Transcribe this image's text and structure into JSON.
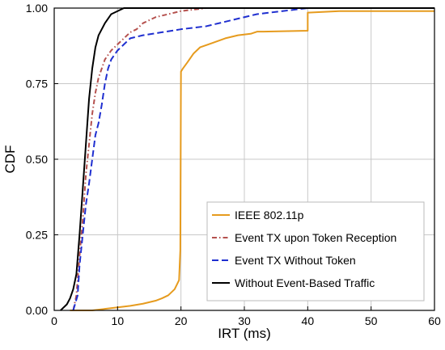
{
  "chart_data": {
    "type": "line",
    "title": "",
    "xlabel": "IRT (ms)",
    "ylabel": "CDF",
    "xlim": [
      0,
      60
    ],
    "ylim": [
      0,
      1
    ],
    "x_ticks": [
      0,
      10,
      20,
      30,
      40,
      50,
      60
    ],
    "x_tick_labels": [
      "0",
      "10",
      "20",
      "30",
      "40",
      "50",
      "60"
    ],
    "y_ticks": [
      0,
      0.25,
      0.5,
      0.75,
      1.0
    ],
    "y_tick_labels": [
      "0.00",
      "0.25",
      "0.50",
      "0.75",
      "1.00"
    ],
    "grid": true,
    "legend_position": "bottom-right",
    "series": [
      {
        "name": "IEEE 802.11p",
        "color": "#E69B1E",
        "dash": "solid",
        "points": [
          [
            2.5,
            0
          ],
          [
            6,
            0
          ],
          [
            8,
            0.005
          ],
          [
            10,
            0.01
          ],
          [
            12,
            0.015
          ],
          [
            14,
            0.022
          ],
          [
            16,
            0.032
          ],
          [
            17,
            0.04
          ],
          [
            18,
            0.05
          ],
          [
            19,
            0.07
          ],
          [
            19.7,
            0.1
          ],
          [
            19.9,
            0.2
          ],
          [
            20,
            0.79
          ],
          [
            20.3,
            0.8
          ],
          [
            21,
            0.82
          ],
          [
            22,
            0.85
          ],
          [
            23,
            0.87
          ],
          [
            25,
            0.885
          ],
          [
            27,
            0.9
          ],
          [
            29,
            0.91
          ],
          [
            31,
            0.915
          ],
          [
            32,
            0.922
          ],
          [
            33,
            0.922
          ],
          [
            40,
            0.925
          ],
          [
            40,
            0.985
          ],
          [
            45,
            0.99
          ],
          [
            60,
            0.99
          ]
        ]
      },
      {
        "name": "Event TX upon Token Reception",
        "color": "#B5514E",
        "dash": "dashdot",
        "points": [
          [
            3,
            0
          ],
          [
            3.5,
            0.05
          ],
          [
            4,
            0.18
          ],
          [
            4.5,
            0.3
          ],
          [
            5,
            0.45
          ],
          [
            5.5,
            0.55
          ],
          [
            6,
            0.65
          ],
          [
            6.5,
            0.72
          ],
          [
            7,
            0.77
          ],
          [
            7.5,
            0.8
          ],
          [
            8,
            0.83
          ],
          [
            9,
            0.86
          ],
          [
            10,
            0.88
          ],
          [
            11,
            0.9
          ],
          [
            12,
            0.92
          ],
          [
            13,
            0.93
          ],
          [
            14,
            0.95
          ],
          [
            16,
            0.97
          ],
          [
            18,
            0.98
          ],
          [
            20,
            0.99
          ],
          [
            24,
            1.0
          ],
          [
            60,
            1.0
          ]
        ]
      },
      {
        "name": "Event TX Without Token",
        "color": "#1F2FD0",
        "dash": "dashed",
        "points": [
          [
            3,
            0
          ],
          [
            3.7,
            0.05
          ],
          [
            4,
            0.15
          ],
          [
            4.5,
            0.25
          ],
          [
            5,
            0.35
          ],
          [
            5.5,
            0.42
          ],
          [
            6,
            0.5
          ],
          [
            6.5,
            0.58
          ],
          [
            7,
            0.62
          ],
          [
            7.5,
            0.68
          ],
          [
            8,
            0.75
          ],
          [
            8.5,
            0.8
          ],
          [
            9,
            0.83
          ],
          [
            10,
            0.86
          ],
          [
            11,
            0.88
          ],
          [
            12,
            0.9
          ],
          [
            14,
            0.91
          ],
          [
            17,
            0.92
          ],
          [
            20,
            0.93
          ],
          [
            24,
            0.94
          ],
          [
            28,
            0.96
          ],
          [
            32,
            0.98
          ],
          [
            36,
            0.99
          ],
          [
            40,
            1.0
          ],
          [
            60,
            1.0
          ]
        ]
      },
      {
        "name": "Without Event-Based Traffic",
        "color": "#000000",
        "dash": "solid",
        "points": [
          [
            1,
            0
          ],
          [
            1.5,
            0.01
          ],
          [
            2,
            0.02
          ],
          [
            2.5,
            0.04
          ],
          [
            3,
            0.07
          ],
          [
            3.5,
            0.12
          ],
          [
            4,
            0.25
          ],
          [
            4.5,
            0.4
          ],
          [
            5,
            0.55
          ],
          [
            5.5,
            0.7
          ],
          [
            6,
            0.8
          ],
          [
            6.5,
            0.87
          ],
          [
            7,
            0.91
          ],
          [
            8,
            0.95
          ],
          [
            9,
            0.98
          ],
          [
            10,
            0.99
          ],
          [
            11,
            1.0
          ],
          [
            60,
            1.0
          ]
        ]
      }
    ]
  }
}
